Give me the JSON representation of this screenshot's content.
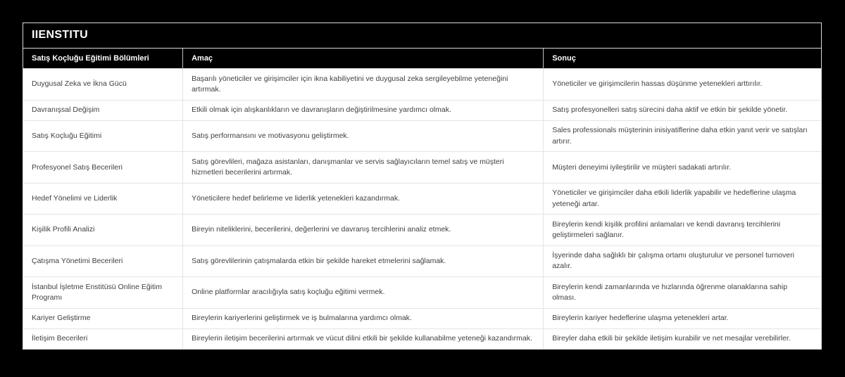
{
  "brand": {
    "title": "IIENSTITU"
  },
  "colors": {
    "page_bg": "#000000",
    "header_bg": "#000000",
    "header_text": "#ffffff",
    "body_bg": "#ffffff",
    "body_text": "#404040",
    "border_light": "#e4e4e4",
    "panel_border": "#d9d9d9"
  },
  "table": {
    "columns": [
      "Satış Koçluğu Eğitimi Bölümleri",
      "Amaç",
      "Sonuç"
    ],
    "rows": [
      {
        "bolum": "Duygusal Zeka ve İkna Gücü",
        "amac": "Başarılı yöneticiler ve girişimciler için ikna kabiliyetini ve duygusal zeka sergileyebilme yeteneğini artırmak.",
        "sonuc": "Yöneticiler ve girişimcilerin hassas düşünme yetenekleri arttırılır."
      },
      {
        "bolum": "Davranışsal Değişim",
        "amac": "Etkili olmak için alışkanlıkların ve davranışların değiştirilmesine yardımcı olmak.",
        "sonuc": "Satış profesyonelleri satış sürecini daha aktif ve etkin bir şekilde yönetir."
      },
      {
        "bolum": "Satış Koçluğu Eğitimi",
        "amac": "Satış performansını ve motivasyonu geliştirmek.",
        "sonuc": "Sales professionals müşterinin inisiyatiflerine daha etkin yanıt verir ve satışları artırır."
      },
      {
        "bolum": "Profesyonel Satış Becerileri",
        "amac": "Satış görevlileri, mağaza asistanları, danışmanlar ve servis sağlayıcıların temel satış ve müşteri hizmetleri becerilerini artırmak.",
        "sonuc": "Müşteri deneyimi iyileştirilir ve müşteri sadakati artırılır."
      },
      {
        "bolum": "Hedef Yönelimi ve Liderlik",
        "amac": "Yöneticilere hedef belirleme ve liderlik yetenekleri kazandırmak.",
        "sonuc": "Yöneticiler ve girişimciler daha etkili liderlik yapabilir ve hedeflerine ulaşma yeteneği artar."
      },
      {
        "bolum": "Kişilik Profili Analizi",
        "amac": "Bireyin niteliklerini, becerilerini, değerlerini ve davranış tercihlerini analiz etmek.",
        "sonuc": "Bireylerin kendi kişilik profilini anlamaları ve kendi davranış tercihlerini geliştirmeleri sağlanır."
      },
      {
        "bolum": "Çatışma Yönetimi Becerileri",
        "amac": "Satış görevlilerinin çatışmalarda etkin bir şekilde hareket etmelerini sağlamak.",
        "sonuc": "İşyerinde daha sağlıklı bir çalışma ortamı oluşturulur ve personel turnoveri azalır."
      },
      {
        "bolum": "İstanbul İşletme Enstitüsü Online Eğitim Programı",
        "amac": "Online platformlar aracılığıyla satış koçluğu eğitimi vermek.",
        "sonuc": "Bireylerin kendi zamanlarında ve hızlarında öğrenme olanaklarına sahip olması."
      },
      {
        "bolum": "Kariyer Geliştirme",
        "amac": "Bireylerin kariyerlerini geliştirmek ve iş bulmalarına yardımcı olmak.",
        "sonuc": "Bireylerin kariyer hedeflerine ulaşma yetenekleri artar."
      },
      {
        "bolum": "İletişim Becerileri",
        "amac": "Bireylerin iletişim becerilerini artırmak ve vücut dilini etkili bir şekilde kullanabilme yeteneği kazandırmak.",
        "sonuc": "Bireyler daha etkili bir şekilde iletişim kurabilir ve net mesajlar verebilirler."
      }
    ]
  }
}
